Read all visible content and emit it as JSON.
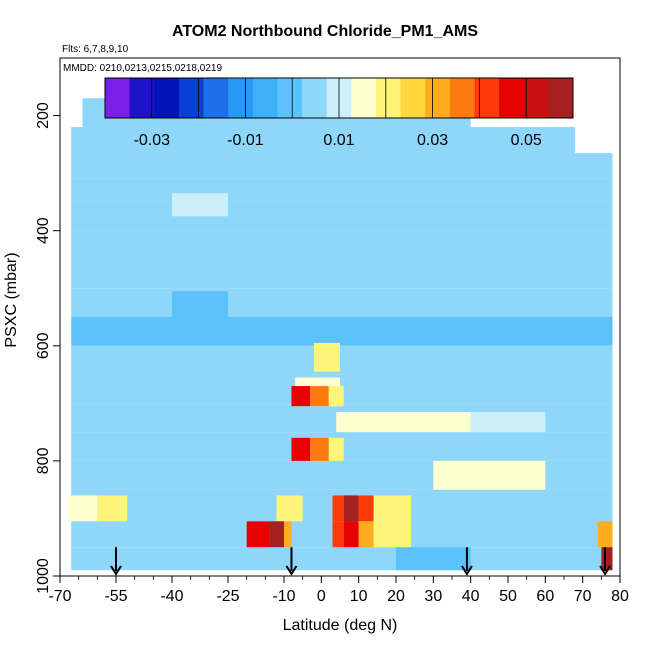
{
  "chart_data": {
    "type": "heatmap",
    "title": "ATOM2 Northbound Chloride_PM1_AMS",
    "flights_label": "Flts: 6,7,8,9,10",
    "dates_label": "MMDD: 0210,0213,0215,0218,0219",
    "xlabel": "Latitude (deg N)",
    "ylabel": "PSXC (mbar)",
    "xlim": [
      -70,
      80
    ],
    "ylim": [
      1000,
      100
    ],
    "x_tick_labels": [
      "-70",
      "-55",
      "-40",
      "-25",
      "-10",
      "0",
      "10",
      "20",
      "30",
      "40",
      "50",
      "60",
      "70",
      "80"
    ],
    "x_tick_values": [
      -70,
      -55,
      -40,
      -25,
      -10,
      0,
      10,
      20,
      30,
      40,
      50,
      60,
      70,
      80
    ],
    "y_tick_labels": [
      "200",
      "400",
      "600",
      "800",
      "1000"
    ],
    "y_tick_values": [
      200,
      400,
      600,
      800,
      1000
    ],
    "colorbar": {
      "range": [
        -0.04,
        0.06
      ],
      "tick_labels": [
        "-0.03",
        "-0.01",
        "0.01",
        "0.03",
        "0.05"
      ],
      "tick_values": [
        -0.03,
        -0.01,
        0.01,
        0.03,
        0.05
      ],
      "colors": [
        "#7a1fe6",
        "#1e12c8",
        "#0014b8",
        "#0a3fd4",
        "#1e6ee8",
        "#2898f4",
        "#3db0fa",
        "#5cc2fb",
        "#8fd6fb",
        "#cdeefb",
        "#ffffd0",
        "#fff47a",
        "#ffd63a",
        "#ffad1e",
        "#ff7a10",
        "#ff3a08",
        "#e80000",
        "#c81010",
        "#a52020"
      ]
    },
    "flight_markers_lat": [
      -55,
      -8,
      39,
      76
    ],
    "background_value": 0.005,
    "pressure_bands": [
      {
        "p": [
          170,
          220
        ],
        "lat": [
          -64,
          40
        ],
        "value": 0.006
      },
      {
        "p": [
          220,
          265
        ],
        "lat": [
          -67,
          68
        ],
        "value": 0.005
      },
      {
        "p": [
          265,
          310
        ],
        "lat": [
          -67,
          78
        ],
        "value": 0.004
      },
      {
        "p": [
          310,
          350
        ],
        "lat": [
          -67,
          78
        ],
        "value": 0.003
      },
      {
        "p": [
          350,
          400
        ],
        "lat": [
          -67,
          78
        ],
        "value": 0.004
      },
      {
        "p": [
          400,
          450
        ],
        "lat": [
          -67,
          78
        ],
        "value": 0.003
      },
      {
        "p": [
          450,
          500
        ],
        "lat": [
          -67,
          78
        ],
        "value": 0.004
      },
      {
        "p": [
          500,
          550
        ],
        "lat": [
          -67,
          78
        ],
        "value": 0.003
      },
      {
        "p": [
          550,
          600
        ],
        "lat": [
          -67,
          78
        ],
        "value": 0.002
      },
      {
        "p": [
          600,
          650
        ],
        "lat": [
          -67,
          78
        ],
        "value": 0.004
      },
      {
        "p": [
          650,
          700
        ],
        "lat": [
          -67,
          78
        ],
        "value": 0.005
      },
      {
        "p": [
          700,
          750
        ],
        "lat": [
          -67,
          78
        ],
        "value": 0.006
      },
      {
        "p": [
          750,
          800
        ],
        "lat": [
          -67,
          78
        ],
        "value": 0.005
      },
      {
        "p": [
          800,
          850
        ],
        "lat": [
          -67,
          78
        ],
        "value": 0.004
      },
      {
        "p": [
          850,
          900
        ],
        "lat": [
          -67,
          78
        ],
        "value": 0.006
      },
      {
        "p": [
          900,
          950
        ],
        "lat": [
          -67,
          78
        ],
        "value": 0.005
      },
      {
        "p": [
          950,
          990
        ],
        "lat": [
          -67,
          78
        ],
        "value": 0.005
      }
    ],
    "features": [
      {
        "p": [
          335,
          375
        ],
        "lat": [
          -40,
          -25
        ],
        "value": 0.012
      },
      {
        "p": [
          505,
          560
        ],
        "lat": [
          -40,
          -25
        ],
        "value": -0.003
      },
      {
        "p": [
          595,
          645
        ],
        "lat": [
          -2,
          5
        ],
        "value": 0.018
      },
      {
        "p": [
          655,
          705
        ],
        "lat": [
          -7,
          5
        ],
        "value": 0.015
      },
      {
        "p": [
          670,
          705
        ],
        "lat": [
          -8,
          -3
        ],
        "value": 0.046
      },
      {
        "p": [
          670,
          705
        ],
        "lat": [
          -3,
          2
        ],
        "value": 0.034
      },
      {
        "p": [
          670,
          705
        ],
        "lat": [
          2,
          6
        ],
        "value": 0.022
      },
      {
        "p": [
          715,
          750
        ],
        "lat": [
          4,
          40
        ],
        "value": 0.013
      },
      {
        "p": [
          715,
          750
        ],
        "lat": [
          40,
          60
        ],
        "value": 0.01
      },
      {
        "p": [
          760,
          800
        ],
        "lat": [
          -8,
          -3
        ],
        "value": 0.046
      },
      {
        "p": [
          760,
          800
        ],
        "lat": [
          -3,
          2
        ],
        "value": 0.034
      },
      {
        "p": [
          760,
          800
        ],
        "lat": [
          2,
          6
        ],
        "value": 0.022
      },
      {
        "p": [
          800,
          850
        ],
        "lat": [
          30,
          60
        ],
        "value": 0.014
      },
      {
        "p": [
          860,
          905
        ],
        "lat": [
          -68,
          -60
        ],
        "value": 0.016
      },
      {
        "p": [
          860,
          905
        ],
        "lat": [
          -60,
          -52
        ],
        "value": 0.02
      },
      {
        "p": [
          860,
          905
        ],
        "lat": [
          -12,
          -5
        ],
        "value": 0.022
      },
      {
        "p": [
          860,
          905
        ],
        "lat": [
          3,
          6
        ],
        "value": 0.04
      },
      {
        "p": [
          860,
          905
        ],
        "lat": [
          6,
          10
        ],
        "value": 0.058
      },
      {
        "p": [
          860,
          905
        ],
        "lat": [
          10,
          14
        ],
        "value": 0.042
      },
      {
        "p": [
          860,
          905
        ],
        "lat": [
          14,
          24
        ],
        "value": 0.02
      },
      {
        "p": [
          905,
          950
        ],
        "lat": [
          -20,
          -14
        ],
        "value": 0.048
      },
      {
        "p": [
          905,
          950
        ],
        "lat": [
          -14,
          -10
        ],
        "value": 0.058
      },
      {
        "p": [
          905,
          950
        ],
        "lat": [
          -10,
          -8
        ],
        "value": 0.03
      },
      {
        "p": [
          905,
          950
        ],
        "lat": [
          3,
          6
        ],
        "value": 0.04
      },
      {
        "p": [
          905,
          950
        ],
        "lat": [
          6,
          10
        ],
        "value": 0.045
      },
      {
        "p": [
          905,
          950
        ],
        "lat": [
          10,
          14
        ],
        "value": 0.03
      },
      {
        "p": [
          905,
          950
        ],
        "lat": [
          14,
          24
        ],
        "value": 0.018
      },
      {
        "p": [
          905,
          950
        ],
        "lat": [
          74,
          78
        ],
        "value": 0.03
      },
      {
        "p": [
          950,
          990
        ],
        "lat": [
          75,
          78
        ],
        "value": 0.058
      },
      {
        "p": [
          950,
          990
        ],
        "lat": [
          20,
          40
        ],
        "value": 0.001
      }
    ]
  }
}
